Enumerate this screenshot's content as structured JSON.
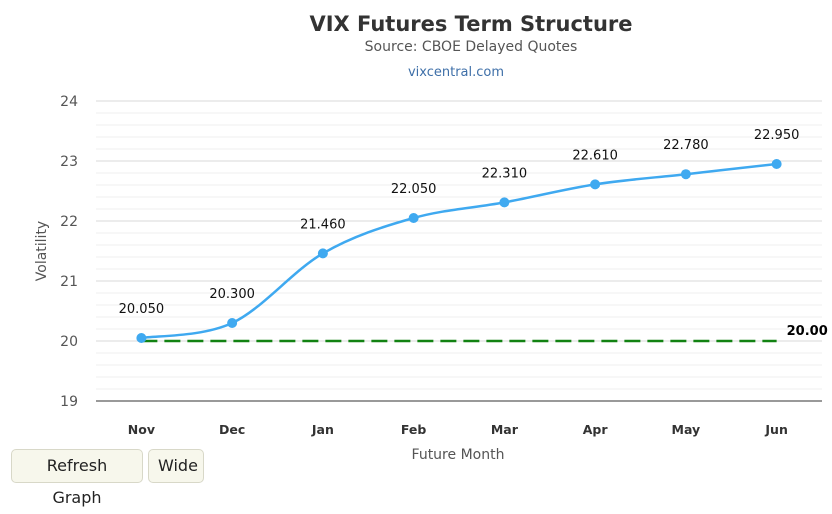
{
  "chart_data": {
    "type": "line",
    "title": "VIX Futures Term Structure",
    "subtitle": "Source: CBOE Delayed Quotes",
    "credit": "vixcentral.com",
    "xlabel": "Future Month",
    "ylabel": "Volatility",
    "categories": [
      "Nov",
      "Dec",
      "Jan",
      "Feb",
      "Mar",
      "Apr",
      "May",
      "Jun"
    ],
    "series": [
      {
        "values": [
          20.05,
          20.3,
          21.46,
          22.05,
          22.31,
          22.61,
          22.78,
          22.95
        ],
        "labels": [
          "20.050",
          "20.300",
          "21.460",
          "22.050",
          "22.310",
          "22.610",
          "22.780",
          "22.950"
        ],
        "color": "#3fa9f0"
      }
    ],
    "reference_line": {
      "value": 20.0,
      "label": "20.00",
      "color": "#128212",
      "style": "dashed"
    },
    "ylim": [
      19,
      24
    ],
    "yticks": [
      "19",
      "20",
      "21",
      "22",
      "23",
      "24"
    ],
    "grid": true,
    "legend": "none"
  },
  "buttons": {
    "refresh_label": "Refresh Graph",
    "wide_label": "Wide"
  }
}
